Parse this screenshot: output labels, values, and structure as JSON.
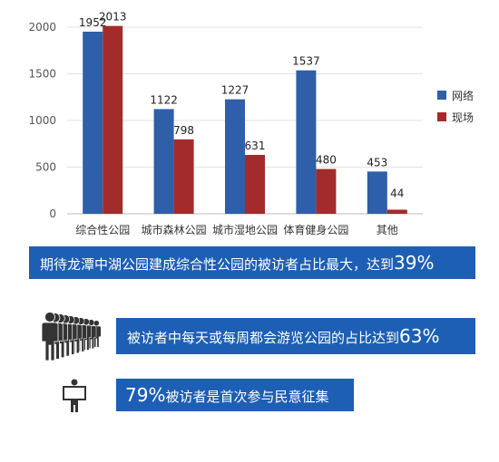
{
  "chart_data": {
    "type": "bar",
    "categories": [
      "综合性公园",
      "城市森林公园",
      "城市湿地公园",
      "体育健身公园",
      "其他"
    ],
    "series": [
      {
        "name": "网络",
        "values": [
          1952,
          1122,
          1227,
          1537,
          453
        ],
        "color": "#2e5fa8"
      },
      {
        "name": "现场",
        "values": [
          2013,
          798,
          631,
          480,
          44
        ],
        "color": "#a42b2b"
      }
    ],
    "ylim": [
      0,
      2000
    ],
    "yticks": [
      0,
      500,
      1000,
      1500,
      2000
    ],
    "grid": true,
    "legend_position": "right"
  },
  "banners": {
    "b1_text": "期待龙潭中湖公园建成综合性公园的被访者占比最大，达到",
    "b1_pct": "39%",
    "b2_text": "被访者中每天或每周都会游览公园的占比达到",
    "b2_pct": "63%",
    "b3_pct": "79%",
    "b3_text": "被访者是首次参与民意征集"
  },
  "icons": {
    "people": "people-queue-icon",
    "person_sign": "person-holding-sign-icon",
    "icon_color": "#333333"
  }
}
